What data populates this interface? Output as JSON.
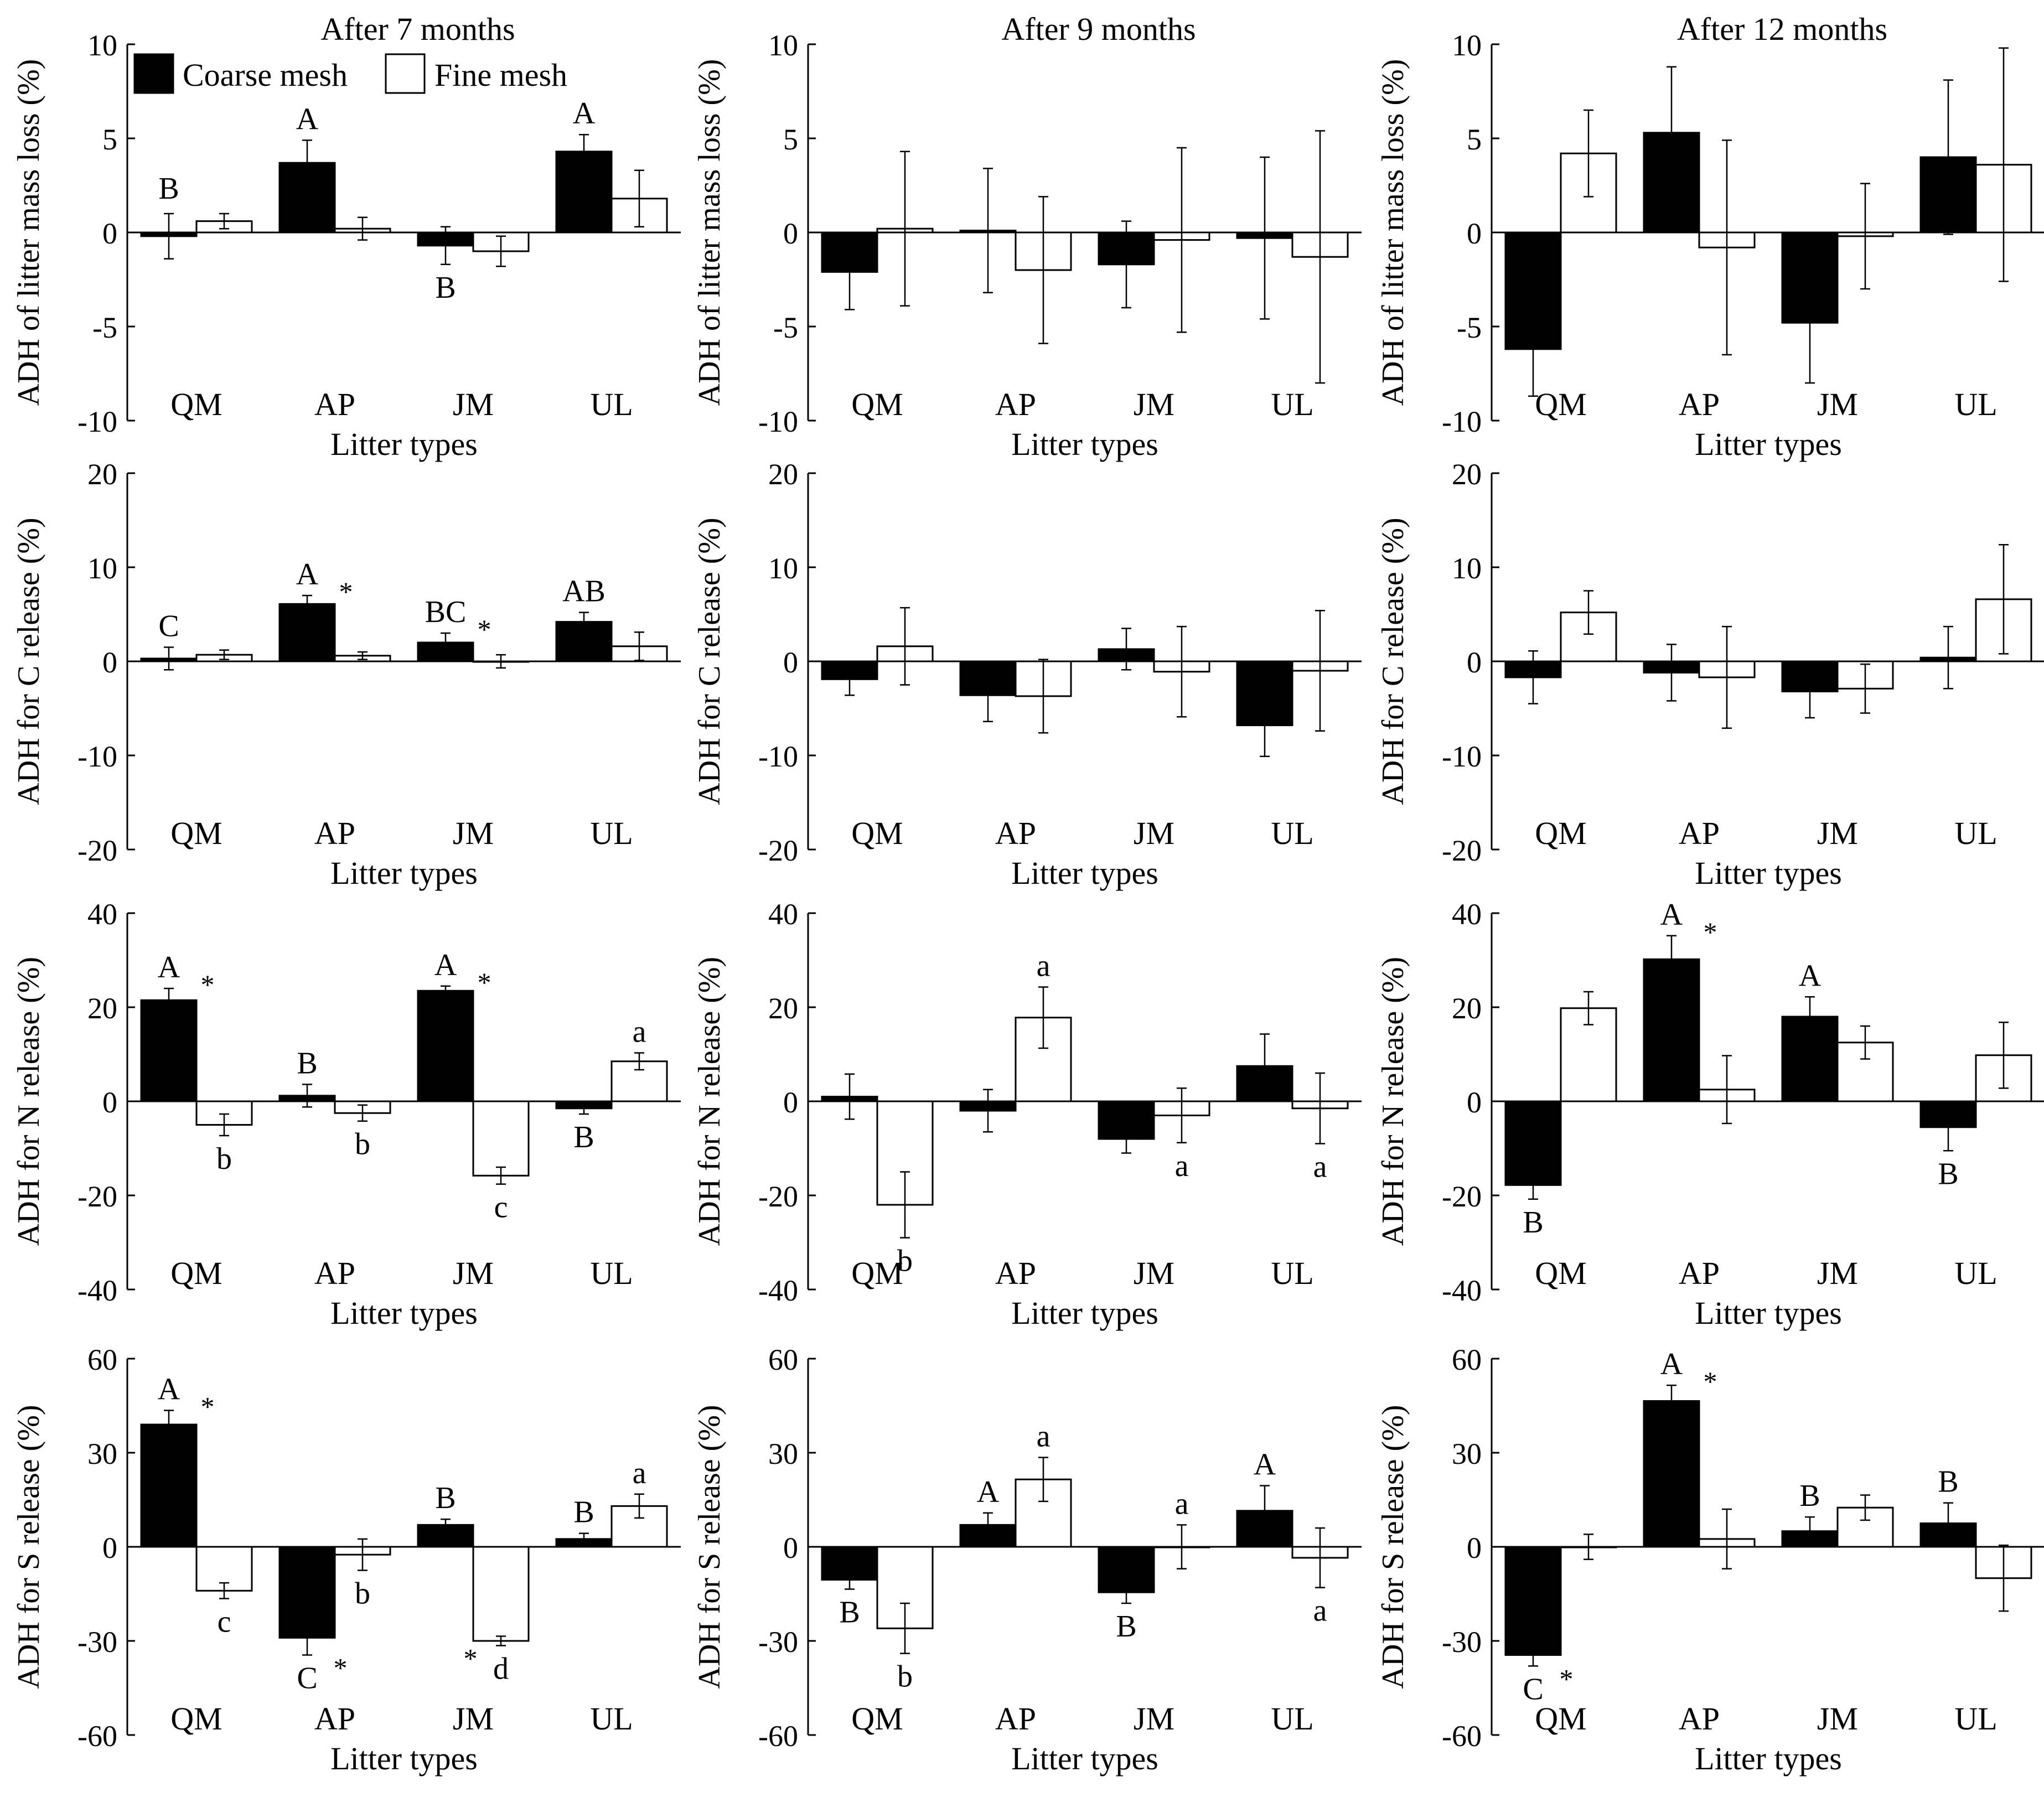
{
  "figure": {
    "x_label": "Litter types",
    "legend": {
      "placement": "top-left of first panel",
      "entries": [
        {
          "name": "Coarse mesh",
          "color": "#000000"
        },
        {
          "name": "Fine mesh",
          "color": "#ffffff"
        }
      ]
    }
  },
  "chart_data": [
    {
      "id": "r0c0",
      "type": "bar",
      "title": "After 7 months",
      "ylabel": "ADH of  litter mass loss (%)",
      "xlabel": "Litter types",
      "categories": [
        "QM",
        "AP",
        "JM",
        "UL"
      ],
      "ylim": [
        -10,
        10
      ],
      "yticks": [
        -10,
        -5,
        0,
        5,
        10
      ],
      "series": [
        {
          "name": "Coarse mesh",
          "values": [
            -0.2,
            3.7,
            -0.7,
            4.3
          ],
          "errors": [
            1.2,
            1.2,
            1.0,
            0.9
          ]
        },
        {
          "name": "Fine mesh",
          "values": [
            0.6,
            0.2,
            -1.0,
            1.8
          ],
          "errors": [
            0.4,
            0.6,
            0.8,
            1.5
          ]
        }
      ],
      "annotations": [
        {
          "cat": 0,
          "s": 0,
          "pos": "above",
          "text": "B"
        },
        {
          "cat": 1,
          "s": 0,
          "pos": "above",
          "text": "A"
        },
        {
          "cat": 2,
          "s": 0,
          "pos": "below",
          "text": "B"
        },
        {
          "cat": 3,
          "s": 0,
          "pos": "above",
          "text": "A"
        }
      ]
    },
    {
      "id": "r0c1",
      "type": "bar",
      "title": "After 9 months",
      "ylabel": "ADH of  litter mass loss (%)",
      "xlabel": "Litter types",
      "categories": [
        "QM",
        "AP",
        "JM",
        "UL"
      ],
      "ylim": [
        -10,
        10
      ],
      "yticks": [
        -10,
        -5,
        0,
        5,
        10
      ],
      "series": [
        {
          "name": "Coarse mesh",
          "values": [
            -2.1,
            0.1,
            -1.7,
            -0.3
          ],
          "errors": [
            2.0,
            3.3,
            2.3,
            4.3
          ]
        },
        {
          "name": "Fine mesh",
          "values": [
            0.2,
            -2.0,
            -0.4,
            -1.3
          ],
          "errors": [
            4.1,
            3.9,
            4.9,
            6.7
          ]
        }
      ],
      "annotations": []
    },
    {
      "id": "r0c2",
      "type": "bar",
      "title": "After 12 months",
      "ylabel": "ADH of  litter mass loss (%)",
      "xlabel": "Litter types",
      "categories": [
        "QM",
        "AP",
        "JM",
        "UL"
      ],
      "ylim": [
        -10,
        10
      ],
      "yticks": [
        -10,
        -5,
        0,
        5,
        10
      ],
      "series": [
        {
          "name": "Coarse mesh",
          "values": [
            -6.2,
            5.3,
            -4.8,
            4.0
          ],
          "errors": [
            2.5,
            3.5,
            3.2,
            4.1
          ]
        },
        {
          "name": "Fine mesh",
          "values": [
            4.2,
            -0.8,
            -0.2,
            3.6
          ],
          "errors": [
            2.3,
            5.7,
            2.8,
            6.2
          ]
        }
      ],
      "annotations": []
    },
    {
      "id": "r1c0",
      "type": "bar",
      "title": "",
      "ylabel": "ADH for C release (%)",
      "xlabel": "Litter types",
      "categories": [
        "QM",
        "AP",
        "JM",
        "UL"
      ],
      "ylim": [
        -20,
        20
      ],
      "yticks": [
        -20,
        -10,
        0,
        10,
        20
      ],
      "series": [
        {
          "name": "Coarse mesh",
          "values": [
            0.3,
            6.1,
            2.0,
            4.2
          ],
          "errors": [
            1.2,
            0.9,
            1.0,
            1.0
          ]
        },
        {
          "name": "Fine mesh",
          "values": [
            0.7,
            0.6,
            0.0,
            1.6
          ],
          "errors": [
            0.5,
            0.4,
            0.7,
            1.5
          ]
        }
      ],
      "annotations": [
        {
          "cat": 0,
          "s": 0,
          "pos": "above",
          "text": "C"
        },
        {
          "cat": 1,
          "s": 0,
          "pos": "above",
          "text": "A"
        },
        {
          "cat": 1,
          "s": 0,
          "pos": "star",
          "text": "*"
        },
        {
          "cat": 2,
          "s": 0,
          "pos": "above",
          "text": "BC"
        },
        {
          "cat": 2,
          "s": 0,
          "pos": "star",
          "text": "*"
        },
        {
          "cat": 3,
          "s": 0,
          "pos": "above",
          "text": "AB"
        }
      ]
    },
    {
      "id": "r1c1",
      "type": "bar",
      "title": "",
      "ylabel": "ADH for C release (%)",
      "xlabel": "Litter types",
      "categories": [
        "QM",
        "AP",
        "JM",
        "UL"
      ],
      "ylim": [
        -20,
        20
      ],
      "yticks": [
        -20,
        -10,
        0,
        10,
        20
      ],
      "series": [
        {
          "name": "Coarse mesh",
          "values": [
            -1.9,
            -3.6,
            1.3,
            -6.8
          ],
          "errors": [
            1.7,
            2.8,
            2.2,
            3.3
          ]
        },
        {
          "name": "Fine mesh",
          "values": [
            1.6,
            -3.7,
            -1.1,
            -1.0
          ],
          "errors": [
            4.1,
            3.9,
            4.8,
            6.4
          ]
        }
      ],
      "annotations": []
    },
    {
      "id": "r1c2",
      "type": "bar",
      "title": "",
      "ylabel": "ADH for C release (%)",
      "xlabel": "Litter types",
      "categories": [
        "QM",
        "AP",
        "JM",
        "UL"
      ],
      "ylim": [
        -20,
        20
      ],
      "yticks": [
        -20,
        -10,
        0,
        10,
        20
      ],
      "series": [
        {
          "name": "Coarse mesh",
          "values": [
            -1.7,
            -1.2,
            -3.2,
            0.4
          ],
          "errors": [
            2.8,
            3.0,
            2.8,
            3.3
          ]
        },
        {
          "name": "Fine mesh",
          "values": [
            5.2,
            -1.7,
            -2.9,
            6.6
          ],
          "errors": [
            2.3,
            5.4,
            2.6,
            5.8
          ]
        }
      ],
      "annotations": []
    },
    {
      "id": "r2c0",
      "type": "bar",
      "title": "",
      "ylabel": "ADH for N release (%)",
      "xlabel": "Litter types",
      "categories": [
        "QM",
        "AP",
        "JM",
        "UL"
      ],
      "ylim": [
        -40,
        40
      ],
      "yticks": [
        -40,
        -20,
        0,
        20,
        40
      ],
      "series": [
        {
          "name": "Coarse mesh",
          "values": [
            21.5,
            1.2,
            23.5,
            -1.5
          ],
          "errors": [
            2.5,
            2.4,
            1.0,
            1.2
          ]
        },
        {
          "name": "Fine mesh",
          "values": [
            -5.0,
            -2.5,
            -15.8,
            8.5
          ],
          "errors": [
            2.3,
            1.7,
            1.8,
            1.8
          ]
        }
      ],
      "annotations": [
        {
          "cat": 0,
          "s": 0,
          "pos": "above",
          "text": "A"
        },
        {
          "cat": 0,
          "s": 0,
          "pos": "star",
          "text": "*"
        },
        {
          "cat": 0,
          "s": 1,
          "pos": "below",
          "text": "b"
        },
        {
          "cat": 1,
          "s": 0,
          "pos": "above",
          "text": "B"
        },
        {
          "cat": 1,
          "s": 1,
          "pos": "below",
          "text": "b"
        },
        {
          "cat": 2,
          "s": 0,
          "pos": "above",
          "text": "A"
        },
        {
          "cat": 2,
          "s": 0,
          "pos": "star",
          "text": "*"
        },
        {
          "cat": 2,
          "s": 1,
          "pos": "below",
          "text": "c"
        },
        {
          "cat": 3,
          "s": 0,
          "pos": "below",
          "text": "B"
        },
        {
          "cat": 3,
          "s": 1,
          "pos": "above",
          "text": "a"
        }
      ]
    },
    {
      "id": "r2c1",
      "type": "bar",
      "title": "",
      "ylabel": "ADH for N release (%)",
      "xlabel": "Litter types",
      "categories": [
        "QM",
        "AP",
        "JM",
        "UL"
      ],
      "ylim": [
        -40,
        40
      ],
      "yticks": [
        -40,
        -20,
        0,
        20,
        40
      ],
      "series": [
        {
          "name": "Coarse mesh",
          "values": [
            1.0,
            -2.0,
            -8.0,
            7.5
          ],
          "errors": [
            4.8,
            4.5,
            3.0,
            6.8
          ]
        },
        {
          "name": "Fine mesh",
          "values": [
            -22.0,
            17.8,
            -3.0,
            -1.5
          ],
          "errors": [
            7.0,
            6.5,
            5.8,
            7.5
          ]
        }
      ],
      "annotations": [
        {
          "cat": 0,
          "s": 1,
          "pos": "below",
          "text": "b"
        },
        {
          "cat": 1,
          "s": 1,
          "pos": "above",
          "text": "a"
        },
        {
          "cat": 2,
          "s": 1,
          "pos": "below",
          "text": "a"
        },
        {
          "cat": 3,
          "s": 1,
          "pos": "below",
          "text": "a"
        }
      ]
    },
    {
      "id": "r2c2",
      "type": "bar",
      "title": "",
      "ylabel": "ADH for N release (%)",
      "xlabel": "Litter types",
      "categories": [
        "QM",
        "AP",
        "JM",
        "UL"
      ],
      "ylim": [
        -40,
        40
      ],
      "yticks": [
        -40,
        -20,
        0,
        20,
        40
      ],
      "series": [
        {
          "name": "Coarse mesh",
          "values": [
            -17.8,
            30.2,
            18.0,
            -5.5
          ],
          "errors": [
            3.0,
            5.0,
            4.2,
            5.0
          ]
        },
        {
          "name": "Fine mesh",
          "values": [
            19.8,
            2.5,
            12.5,
            9.8
          ],
          "errors": [
            3.5,
            7.2,
            3.5,
            7.0
          ]
        }
      ],
      "annotations": [
        {
          "cat": 0,
          "s": 0,
          "pos": "below",
          "text": "B"
        },
        {
          "cat": 1,
          "s": 0,
          "pos": "above",
          "text": "A"
        },
        {
          "cat": 1,
          "s": 0,
          "pos": "star",
          "text": "*"
        },
        {
          "cat": 2,
          "s": 0,
          "pos": "above",
          "text": "A"
        },
        {
          "cat": 3,
          "s": 0,
          "pos": "below",
          "text": "B"
        }
      ]
    },
    {
      "id": "r3c0",
      "type": "bar",
      "title": "",
      "ylabel": "ADH for S release (%)",
      "xlabel": "Litter types",
      "categories": [
        "QM",
        "AP",
        "JM",
        "UL"
      ],
      "ylim": [
        -60,
        60
      ],
      "yticks": [
        -60,
        -30,
        0,
        30,
        60
      ],
      "series": [
        {
          "name": "Coarse mesh",
          "values": [
            39.0,
            -29.0,
            7.0,
            2.5
          ],
          "errors": [
            4.5,
            5.5,
            1.8,
            1.8
          ]
        },
        {
          "name": "Fine mesh",
          "values": [
            -14.0,
            -2.5,
            -30.0,
            13.0
          ],
          "errors": [
            2.5,
            5.0,
            1.5,
            3.8
          ]
        }
      ],
      "annotations": [
        {
          "cat": 0,
          "s": 0,
          "pos": "above",
          "text": "A"
        },
        {
          "cat": 0,
          "s": 0,
          "pos": "star",
          "text": "*"
        },
        {
          "cat": 0,
          "s": 1,
          "pos": "below",
          "text": "c"
        },
        {
          "cat": 1,
          "s": 0,
          "pos": "below",
          "text": "C"
        },
        {
          "cat": 1,
          "s": 0,
          "pos": "starbelow",
          "text": "*"
        },
        {
          "cat": 1,
          "s": 1,
          "pos": "below",
          "text": "b"
        },
        {
          "cat": 2,
          "s": 0,
          "pos": "above",
          "text": "B"
        },
        {
          "cat": 2,
          "s": 1,
          "pos": "starbelowleft",
          "text": "*"
        },
        {
          "cat": 2,
          "s": 1,
          "pos": "below",
          "text": "d"
        },
        {
          "cat": 3,
          "s": 0,
          "pos": "above",
          "text": "B"
        },
        {
          "cat": 3,
          "s": 1,
          "pos": "above",
          "text": "a"
        }
      ]
    },
    {
      "id": "r3c1",
      "type": "bar",
      "title": "",
      "ylabel": "ADH for S release (%)",
      "xlabel": "Litter types",
      "categories": [
        "QM",
        "AP",
        "JM",
        "UL"
      ],
      "ylim": [
        -60,
        60
      ],
      "yticks": [
        -60,
        -30,
        0,
        30,
        60
      ],
      "series": [
        {
          "name": "Coarse mesh",
          "values": [
            -10.5,
            7.0,
            -14.5,
            11.5
          ],
          "errors": [
            3.0,
            3.8,
            3.5,
            8.0
          ]
        },
        {
          "name": "Fine mesh",
          "values": [
            -26.0,
            21.5,
            0.0,
            -3.5
          ],
          "errors": [
            8.0,
            7.0,
            7.0,
            9.5
          ]
        }
      ],
      "annotations": [
        {
          "cat": 0,
          "s": 0,
          "pos": "below",
          "text": "B"
        },
        {
          "cat": 0,
          "s": 1,
          "pos": "below",
          "text": "b"
        },
        {
          "cat": 1,
          "s": 0,
          "pos": "above",
          "text": "A"
        },
        {
          "cat": 1,
          "s": 1,
          "pos": "above",
          "text": "a"
        },
        {
          "cat": 2,
          "s": 0,
          "pos": "below",
          "text": "B"
        },
        {
          "cat": 2,
          "s": 1,
          "pos": "above",
          "text": "a"
        },
        {
          "cat": 3,
          "s": 0,
          "pos": "above",
          "text": "A"
        },
        {
          "cat": 3,
          "s": 1,
          "pos": "below",
          "text": "a"
        }
      ]
    },
    {
      "id": "r3c2",
      "type": "bar",
      "title": "",
      "ylabel": "ADH for S release (%)",
      "xlabel": "Litter types",
      "categories": [
        "QM",
        "AP",
        "JM",
        "UL"
      ],
      "ylim": [
        -60,
        60
      ],
      "yticks": [
        -60,
        -30,
        0,
        30,
        60
      ],
      "series": [
        {
          "name": "Coarse mesh",
          "values": [
            -34.5,
            46.5,
            5.0,
            7.5
          ],
          "errors": [
            3.5,
            5.0,
            4.5,
            6.5
          ]
        },
        {
          "name": "Fine mesh",
          "values": [
            0.0,
            2.5,
            12.5,
            -10.0
          ],
          "errors": [
            4.0,
            9.5,
            4.0,
            10.5
          ]
        }
      ],
      "annotations": [
        {
          "cat": 0,
          "s": 0,
          "pos": "below",
          "text": "C"
        },
        {
          "cat": 0,
          "s": 0,
          "pos": "starbelow",
          "text": "*"
        },
        {
          "cat": 1,
          "s": 0,
          "pos": "above",
          "text": "A"
        },
        {
          "cat": 1,
          "s": 0,
          "pos": "star",
          "text": "*"
        },
        {
          "cat": 2,
          "s": 0,
          "pos": "above",
          "text": "B"
        },
        {
          "cat": 3,
          "s": 0,
          "pos": "above",
          "text": "B"
        }
      ]
    }
  ]
}
